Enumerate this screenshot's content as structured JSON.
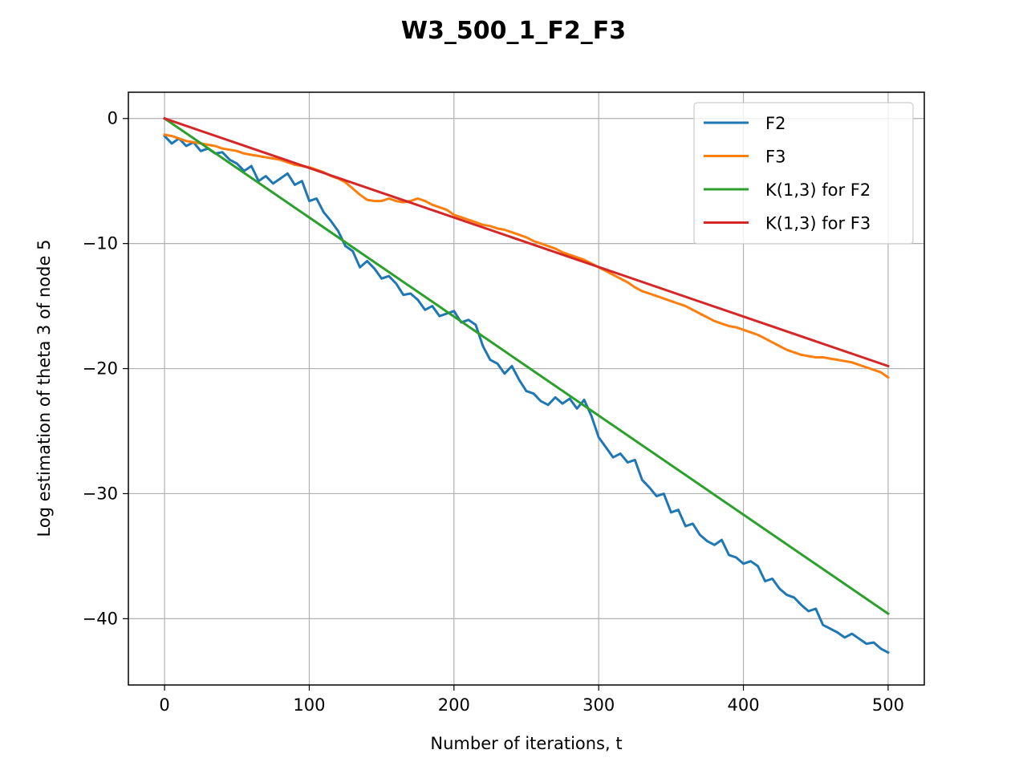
{
  "chart_data": {
    "type": "line",
    "title": "W3_500_1_F2_F3",
    "xlabel": "Number of iterations, t",
    "ylabel": "Log estimation of theta 3 of node 5",
    "xlim": [
      -25,
      525
    ],
    "ylim": [
      -45.3,
      2.1
    ],
    "xticks": [
      0,
      100,
      200,
      300,
      400,
      500
    ],
    "yticks": [
      0,
      -10,
      -20,
      -30,
      -40
    ],
    "xtick_labels": [
      "0",
      "100",
      "200",
      "300",
      "400",
      "500"
    ],
    "ytick_labels": [
      "0",
      "−10",
      "−20",
      "−30",
      "−40"
    ],
    "grid": true,
    "legend_position": "top-right",
    "series": [
      {
        "name": "F2",
        "color": "#1f77b4",
        "x": [
          0,
          5,
          10,
          15,
          20,
          25,
          30,
          35,
          40,
          45,
          50,
          55,
          60,
          65,
          70,
          75,
          80,
          85,
          90,
          95,
          100,
          105,
          110,
          115,
          120,
          125,
          130,
          135,
          140,
          145,
          150,
          155,
          160,
          165,
          170,
          175,
          180,
          185,
          190,
          195,
          200,
          205,
          210,
          215,
          220,
          225,
          230,
          235,
          240,
          245,
          250,
          255,
          260,
          265,
          270,
          275,
          280,
          285,
          290,
          295,
          300,
          305,
          310,
          315,
          320,
          325,
          330,
          335,
          340,
          345,
          350,
          355,
          360,
          365,
          370,
          375,
          380,
          385,
          390,
          395,
          400,
          405,
          410,
          415,
          420,
          425,
          430,
          435,
          440,
          445,
          450,
          455,
          460,
          465,
          470,
          475,
          480,
          485,
          490,
          495,
          500
        ],
        "y": [
          -1.4,
          -2.0,
          -1.6,
          -2.2,
          -1.9,
          -2.6,
          -2.4,
          -2.8,
          -2.7,
          -3.3,
          -3.6,
          -4.2,
          -3.8,
          -5.0,
          -4.6,
          -5.2,
          -4.8,
          -4.4,
          -5.3,
          -5.0,
          -6.6,
          -6.4,
          -7.5,
          -8.2,
          -9.0,
          -10.2,
          -10.6,
          -11.9,
          -11.4,
          -12.0,
          -12.8,
          -12.6,
          -13.2,
          -14.1,
          -14.0,
          -14.5,
          -15.3,
          -15.0,
          -15.8,
          -15.6,
          -15.4,
          -16.3,
          -16.1,
          -16.5,
          -18.2,
          -19.3,
          -19.6,
          -20.4,
          -19.8,
          -20.9,
          -21.8,
          -22.0,
          -22.6,
          -22.9,
          -22.3,
          -22.8,
          -22.4,
          -23.2,
          -22.5,
          -23.8,
          -25.5,
          -26.3,
          -27.1,
          -26.8,
          -27.5,
          -27.3,
          -28.9,
          -29.5,
          -30.2,
          -30.0,
          -31.5,
          -31.3,
          -32.6,
          -32.4,
          -33.3,
          -33.8,
          -34.1,
          -33.7,
          -34.9,
          -35.1,
          -35.6,
          -35.4,
          -35.8,
          -37.0,
          -36.8,
          -37.6,
          -38.1,
          -38.3,
          -38.9,
          -39.4,
          -39.2,
          -40.5,
          -40.8,
          -41.1,
          -41.5,
          -41.2,
          -41.6,
          -42.0,
          -41.9,
          -42.4,
          -42.7
        ]
      },
      {
        "name": "F3",
        "color": "#ff7f0e",
        "x": [
          0,
          5,
          10,
          15,
          20,
          25,
          30,
          35,
          40,
          45,
          50,
          55,
          60,
          65,
          70,
          75,
          80,
          85,
          90,
          95,
          100,
          105,
          110,
          115,
          120,
          125,
          130,
          135,
          140,
          145,
          150,
          155,
          160,
          165,
          170,
          175,
          180,
          185,
          190,
          195,
          200,
          205,
          210,
          215,
          220,
          225,
          230,
          235,
          240,
          245,
          250,
          255,
          260,
          265,
          270,
          275,
          280,
          285,
          290,
          295,
          300,
          305,
          310,
          315,
          320,
          325,
          330,
          335,
          340,
          345,
          350,
          355,
          360,
          365,
          370,
          375,
          380,
          385,
          390,
          395,
          400,
          405,
          410,
          415,
          420,
          425,
          430,
          435,
          440,
          445,
          450,
          455,
          460,
          465,
          470,
          475,
          480,
          485,
          490,
          495,
          500
        ],
        "y": [
          -1.3,
          -1.4,
          -1.6,
          -1.8,
          -1.9,
          -2.0,
          -2.1,
          -2.2,
          -2.4,
          -2.5,
          -2.6,
          -2.8,
          -2.9,
          -3.0,
          -3.1,
          -3.2,
          -3.3,
          -3.5,
          -3.7,
          -3.8,
          -3.9,
          -4.1,
          -4.3,
          -4.6,
          -4.8,
          -5.1,
          -5.6,
          -6.1,
          -6.5,
          -6.6,
          -6.6,
          -6.4,
          -6.6,
          -6.7,
          -6.6,
          -6.4,
          -6.6,
          -6.9,
          -7.1,
          -7.3,
          -7.7,
          -7.9,
          -8.1,
          -8.3,
          -8.5,
          -8.6,
          -8.8,
          -8.9,
          -9.1,
          -9.3,
          -9.5,
          -9.8,
          -10.0,
          -10.2,
          -10.4,
          -10.7,
          -10.9,
          -11.1,
          -11.3,
          -11.6,
          -11.9,
          -12.2,
          -12.5,
          -12.8,
          -13.1,
          -13.5,
          -13.8,
          -14.0,
          -14.2,
          -14.4,
          -14.6,
          -14.8,
          -15.0,
          -15.3,
          -15.6,
          -15.9,
          -16.2,
          -16.4,
          -16.6,
          -16.7,
          -16.9,
          -17.1,
          -17.3,
          -17.6,
          -17.9,
          -18.2,
          -18.5,
          -18.7,
          -18.9,
          -19.0,
          -19.1,
          -19.1,
          -19.2,
          -19.3,
          -19.4,
          -19.5,
          -19.7,
          -19.9,
          -20.1,
          -20.3,
          -20.7
        ]
      },
      {
        "name": "K(1,3) for F2",
        "color": "#2ca02c",
        "x": [
          0,
          500
        ],
        "y": [
          0.0,
          -39.6
        ]
      },
      {
        "name": "K(1,3) for F3",
        "color": "#d62728",
        "x": [
          0,
          500
        ],
        "y": [
          0.0,
          -19.8
        ]
      }
    ]
  },
  "colors": {
    "grid": "#b0b0b0",
    "legend_border": "#cccccc",
    "axes": "#000000"
  }
}
